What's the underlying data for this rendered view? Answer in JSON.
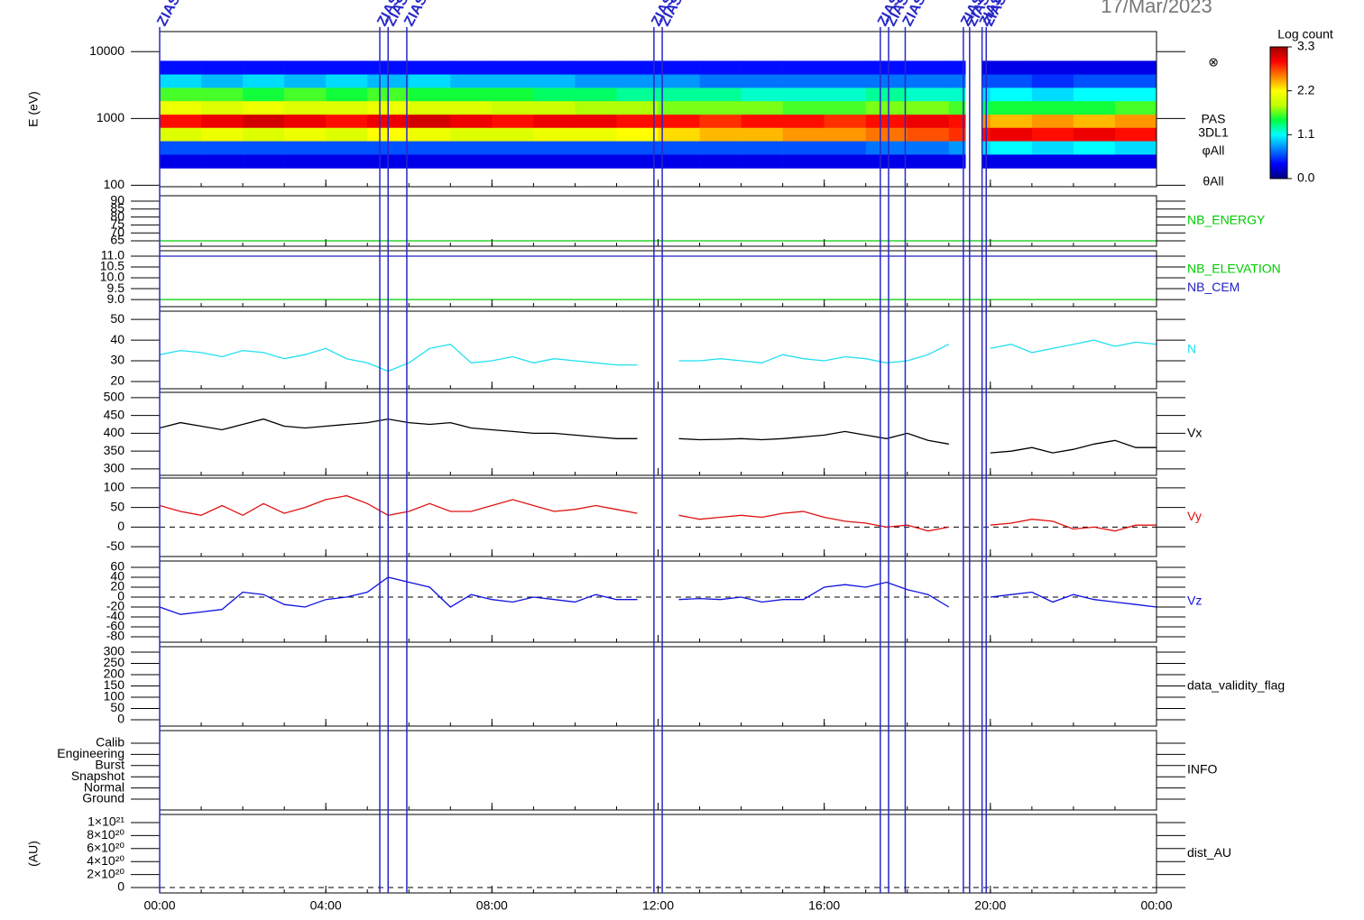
{
  "date": "17/Mar/2023",
  "xaxis": {
    "xlim": [
      0,
      24
    ],
    "xticks": [
      {
        "value": 0,
        "label": "00:00"
      },
      {
        "value": 4,
        "label": "04:00"
      },
      {
        "value": 8,
        "label": "08:00"
      },
      {
        "value": 12,
        "label": "12:00"
      },
      {
        "value": 16,
        "label": "16:00"
      },
      {
        "value": 20,
        "label": "20:00"
      },
      {
        "value": 24,
        "label": "00:00"
      }
    ]
  },
  "events": [
    {
      "x": 0.0,
      "label": "ZIAS"
    },
    {
      "x": 5.3,
      "label": "ZIAS"
    },
    {
      "x": 5.5,
      "label": "ZIAS"
    },
    {
      "x": 5.95,
      "label": "ZIAS"
    },
    {
      "x": 11.9,
      "label": "ZIAS"
    },
    {
      "x": 12.1,
      "label": "ZIAS"
    },
    {
      "x": 17.35,
      "label": "ZIAS"
    },
    {
      "x": 17.55,
      "label": "ZIAS"
    },
    {
      "x": 17.95,
      "label": "ZIAS"
    },
    {
      "x": 19.35,
      "label": "ZIAS"
    },
    {
      "x": 19.5,
      "label": "ZIAS"
    },
    {
      "x": 19.8,
      "label": "ZIAS"
    },
    {
      "x": 19.9,
      "label": "ZIAS"
    }
  ],
  "chart_data": [
    {
      "type": "spectrogram",
      "ylabel": "E (eV)",
      "log": true,
      "ylim": [
        95,
        20000
      ],
      "yticks": [
        100,
        1000,
        10000
      ],
      "side_labels": [
        "⊗",
        "PAS",
        "3DL1",
        "φAll",
        "θAll"
      ],
      "xbins": [
        0,
        1,
        2,
        3,
        4,
        5,
        6,
        7,
        8,
        9,
        10,
        11,
        12,
        13,
        14,
        15,
        16,
        17,
        18,
        19,
        19.4,
        19.8,
        20,
        21,
        22,
        23,
        24
      ],
      "ybins": [
        180,
        290,
        460,
        730,
        1150,
        1830,
        2900,
        4600,
        7300
      ],
      "z": [
        [
          0.3,
          0.3,
          0.3,
          0.3,
          0.3,
          0.3,
          0.3,
          0.3,
          0.3,
          0.3,
          0.3,
          0.3,
          0.3,
          0.3,
          0.3,
          0.3,
          0.3,
          0.3,
          0.3,
          0.3,
          null,
          0.3,
          0.3,
          0.3,
          0.3,
          0.3
        ],
        [
          0.6,
          0.6,
          0.6,
          0.6,
          0.6,
          0.6,
          0.6,
          0.6,
          0.6,
          0.6,
          0.6,
          0.6,
          0.6,
          0.6,
          0.6,
          0.6,
          0.6,
          0.7,
          0.7,
          0.8,
          null,
          1.0,
          1.1,
          1.0,
          1.1,
          1.0
        ],
        [
          2.0,
          2.1,
          2.0,
          2.1,
          2.0,
          2.2,
          2.1,
          2.0,
          2.0,
          2.1,
          2.1,
          2.2,
          2.3,
          2.4,
          2.4,
          2.5,
          2.5,
          2.6,
          2.7,
          2.8,
          null,
          2.9,
          3.0,
          2.9,
          3.0,
          2.9
        ],
        [
          2.9,
          3.0,
          3.1,
          3.0,
          2.9,
          3.0,
          3.1,
          3.0,
          2.9,
          3.0,
          3.0,
          2.9,
          2.9,
          2.8,
          2.9,
          2.9,
          2.8,
          2.9,
          3.0,
          2.9,
          null,
          2.5,
          2.4,
          2.5,
          2.4,
          2.5
        ],
        [
          2.1,
          2.0,
          2.1,
          2.0,
          2.0,
          2.1,
          2.0,
          2.0,
          1.9,
          1.9,
          1.8,
          1.8,
          1.7,
          1.7,
          1.7,
          1.6,
          1.6,
          1.7,
          1.7,
          1.6,
          null,
          1.4,
          1.5,
          1.5,
          1.5,
          1.6
        ],
        [
          1.6,
          1.6,
          1.5,
          1.6,
          1.5,
          1.6,
          1.5,
          1.5,
          1.5,
          1.4,
          1.4,
          1.3,
          1.3,
          1.3,
          1.2,
          1.2,
          1.2,
          1.3,
          1.2,
          1.2,
          null,
          1.0,
          1.1,
          1.0,
          1.1,
          1.1
        ],
        [
          1.0,
          0.9,
          1.0,
          0.9,
          1.0,
          0.9,
          1.0,
          0.9,
          0.9,
          0.9,
          0.8,
          0.8,
          0.8,
          0.7,
          0.7,
          0.7,
          0.7,
          0.7,
          0.7,
          0.7,
          null,
          0.6,
          0.6,
          0.5,
          0.6,
          0.6
        ],
        [
          0.4,
          0.4,
          0.4,
          0.4,
          0.4,
          0.4,
          0.4,
          0.4,
          0.4,
          0.4,
          0.4,
          0.4,
          0.4,
          0.4,
          0.4,
          0.4,
          0.4,
          0.4,
          0.4,
          0.4,
          null,
          0.3,
          0.3,
          0.3,
          0.3,
          0.3
        ]
      ],
      "colorbar": {
        "label": "Log count",
        "lim": [
          0,
          3.3
        ],
        "ticks": [
          {
            "value": 0,
            "label": "0.0"
          },
          1.1,
          2.2,
          3.3
        ],
        "colormap": [
          "#00007f",
          "#0000ff",
          "#0080ff",
          "#00ffff",
          "#00ff40",
          "#c0ff00",
          "#ffff00",
          "#ff8000",
          "#ff0000",
          "#9f0000"
        ]
      }
    },
    {
      "type": "line",
      "ylim": [
        61.6,
        93.4
      ],
      "yticks": [
        65,
        70,
        75,
        80,
        85,
        90
      ],
      "x": [
        0,
        24
      ],
      "series": [
        {
          "name": "NB_ENERGY",
          "color": "#00cc00",
          "values": [
            65,
            65
          ]
        }
      ]
    },
    {
      "type": "line",
      "ylim": [
        8.67,
        11.25
      ],
      "yticks": [
        {
          "value": 9,
          "label": "9.0"
        },
        9.5,
        {
          "value": 10,
          "label": "10.0"
        },
        10.5,
        {
          "value": 11,
          "label": "11.0"
        }
      ],
      "x": [
        0,
        24
      ],
      "series": [
        {
          "name": "NB_ELEVATION",
          "color": "#00cc00",
          "values": [
            9,
            9
          ]
        },
        {
          "name": "NB_CEM",
          "color": "#2020c0",
          "values": [
            11,
            11
          ]
        }
      ]
    },
    {
      "type": "line",
      "ylim": [
        16.5,
        54
      ],
      "yticks": [
        20,
        30,
        40,
        50
      ],
      "x": [
        0,
        0.5,
        1,
        1.5,
        2,
        2.5,
        3,
        3.5,
        4,
        4.5,
        5,
        5.5,
        6,
        6.5,
        7,
        7.5,
        8,
        8.5,
        9,
        9.5,
        10,
        10.5,
        11,
        11.5,
        12,
        12.5,
        13,
        13.5,
        14,
        14.5,
        15,
        15.5,
        16,
        16.5,
        17,
        17.5,
        18,
        18.5,
        19,
        19.5,
        20,
        20.5,
        21,
        21.5,
        22,
        22.5,
        23,
        23.5,
        24
      ],
      "series": [
        {
          "name": "N",
          "color": "#22e0f0",
          "values": [
            33,
            35,
            34,
            32,
            35,
            34,
            31,
            33,
            36,
            31,
            29,
            25,
            29,
            36,
            38,
            29,
            30,
            32,
            29,
            31,
            30,
            29,
            28,
            28,
            null,
            30,
            30,
            31,
            30,
            29,
            33,
            31,
            30,
            32,
            31,
            29,
            30,
            33,
            38,
            null,
            36,
            38,
            34,
            36,
            38,
            40,
            37,
            39,
            38
          ]
        }
      ]
    },
    {
      "type": "line",
      "ylim": [
        282,
        515
      ],
      "yticks": [
        300,
        350,
        400,
        450,
        500
      ],
      "x": [
        0,
        0.5,
        1,
        1.5,
        2,
        2.5,
        3,
        3.5,
        4,
        4.5,
        5,
        5.5,
        6,
        6.5,
        7,
        7.5,
        8,
        8.5,
        9,
        9.5,
        10,
        10.5,
        11,
        11.5,
        12,
        12.5,
        13,
        13.5,
        14,
        14.5,
        15,
        15.5,
        16,
        16.5,
        17,
        17.5,
        18,
        18.5,
        19,
        19.5,
        20,
        20.5,
        21,
        21.5,
        22,
        22.5,
        23,
        23.5,
        24
      ],
      "series": [
        {
          "name": "Vx",
          "color": "#000000",
          "values": [
            415,
            430,
            420,
            410,
            425,
            440,
            420,
            415,
            420,
            425,
            430,
            440,
            430,
            425,
            430,
            415,
            410,
            405,
            400,
            400,
            395,
            390,
            385,
            385,
            null,
            385,
            382,
            383,
            385,
            382,
            385,
            390,
            395,
            405,
            395,
            385,
            400,
            380,
            370,
            null,
            345,
            350,
            360,
            345,
            355,
            370,
            380,
            360,
            360
          ]
        }
      ]
    },
    {
      "type": "line",
      "ylim": [
        -75,
        125
      ],
      "yticks": [
        -50,
        0,
        50,
        100
      ],
      "zero_line": true,
      "x": [
        0,
        0.5,
        1,
        1.5,
        2,
        2.5,
        3,
        3.5,
        4,
        4.5,
        5,
        5.5,
        6,
        6.5,
        7,
        7.5,
        8,
        8.5,
        9,
        9.5,
        10,
        10.5,
        11,
        11.5,
        12,
        12.5,
        13,
        13.5,
        14,
        14.5,
        15,
        15.5,
        16,
        16.5,
        17,
        17.5,
        18,
        18.5,
        19,
        19.5,
        20,
        20.5,
        21,
        21.5,
        22,
        22.5,
        23,
        23.5,
        24
      ],
      "series": [
        {
          "name": "Vy",
          "color": "#e01010",
          "values": [
            55,
            40,
            30,
            55,
            30,
            60,
            35,
            50,
            70,
            80,
            60,
            30,
            40,
            60,
            40,
            40,
            55,
            70,
            55,
            40,
            45,
            55,
            45,
            35,
            null,
            30,
            20,
            25,
            30,
            25,
            35,
            40,
            25,
            15,
            10,
            0,
            5,
            -10,
            0,
            null,
            5,
            10,
            20,
            15,
            -5,
            0,
            -10,
            5,
            5
          ]
        }
      ]
    },
    {
      "type": "line",
      "ylim": [
        -91,
        72.7
      ],
      "yticks": [
        -80,
        -60,
        -40,
        -20,
        0,
        20,
        40,
        60
      ],
      "zero_line": true,
      "x": [
        0,
        0.5,
        1,
        1.5,
        2,
        2.5,
        3,
        3.5,
        4,
        4.5,
        5,
        5.5,
        6,
        6.5,
        7,
        7.5,
        8,
        8.5,
        9,
        9.5,
        10,
        10.5,
        11,
        11.5,
        12,
        12.5,
        13,
        13.5,
        14,
        14.5,
        15,
        15.5,
        16,
        16.5,
        17,
        17.5,
        18,
        18.5,
        19,
        19.5,
        20,
        20.5,
        21,
        21.5,
        22,
        22.5,
        23,
        23.5,
        24
      ],
      "series": [
        {
          "name": "Vz",
          "color": "#1010e0",
          "values": [
            -20,
            -35,
            -30,
            -25,
            10,
            5,
            -15,
            -20,
            -5,
            0,
            10,
            40,
            30,
            20,
            -20,
            5,
            -5,
            -10,
            0,
            -5,
            -10,
            5,
            -5,
            -5,
            null,
            -5,
            -3,
            -5,
            0,
            -10,
            -5,
            -5,
            20,
            25,
            20,
            30,
            15,
            5,
            -20,
            null,
            0,
            5,
            10,
            -10,
            5,
            -5,
            -10,
            -15,
            -20
          ]
        }
      ]
    },
    {
      "type": "line",
      "label": "data_validity_flag",
      "ylim": [
        -28,
        324
      ],
      "yticks": [
        0,
        50,
        100,
        150,
        200,
        250,
        300
      ],
      "series": []
    },
    {
      "type": "category",
      "label": "INFO",
      "categories": [
        "Calib",
        "Engineering",
        "Burst",
        "Snapshot",
        "Normal",
        "Ground"
      ]
    },
    {
      "type": "line",
      "label": "dist_AU",
      "ylabel": "(AU)",
      "ylim": [
        -8.3e+19,
        1.125e+21
      ],
      "zero_line": true,
      "yticks": [
        0,
        {
          "value": 2e+20,
          "label": "2×10²⁰"
        },
        {
          "value": 4e+20,
          "label": "4×10²⁰"
        },
        {
          "value": 6e+20,
          "label": "6×10²⁰"
        },
        {
          "value": 8e+20,
          "label": "8×10²⁰"
        },
        {
          "value": 1e+21,
          "label": "1×10²¹"
        }
      ],
      "series": []
    }
  ]
}
